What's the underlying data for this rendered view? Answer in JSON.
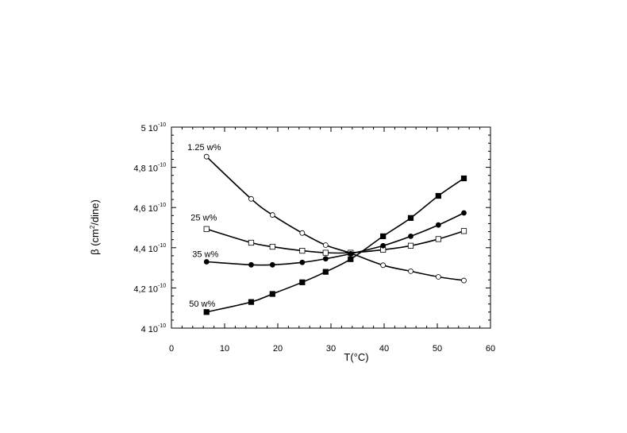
{
  "chart_data": {
    "type": "scatter",
    "xlabel": "T(°C)",
    "ylabel": {
      "prefix": "β (cm",
      "sup": "2",
      "suffix": "/dine)"
    },
    "xlim": [
      0,
      60
    ],
    "ylim": [
      4e-10,
      5e-10
    ],
    "x_ticks": [
      0,
      10,
      20,
      30,
      40,
      50,
      60
    ],
    "y_ticks": [
      {
        "value": 4e-10,
        "mantissa": "4 10",
        "exp": "-10"
      },
      {
        "value": 4.2e-10,
        "mantissa": "4,2 10",
        "exp": "-10"
      },
      {
        "value": 4.4e-10,
        "mantissa": "4,4 10",
        "exp": "-10"
      },
      {
        "value": 4.6e-10,
        "mantissa": "4,6 10",
        "exp": "-10"
      },
      {
        "value": 4.8e-10,
        "mantissa": "4,8 10",
        "exp": "-10"
      },
      {
        "value": 5e-10,
        "mantissa": "5 10",
        "exp": "-10"
      }
    ],
    "grid": false,
    "series": [
      {
        "name": "1.25 w%",
        "marker": "open-circle",
        "x": [
          6.6,
          15,
          19,
          24.6,
          29,
          33.7,
          39.8,
          45,
          50.2,
          55
        ],
        "y": [
          4.853e-10,
          4.643e-10,
          4.563e-10,
          4.473e-10,
          4.413e-10,
          4.373e-10,
          4.313e-10,
          4.283e-10,
          4.255e-10,
          4.237e-10
        ]
      },
      {
        "name": "25 w%",
        "marker": "open-square",
        "x": [
          6.6,
          15,
          19,
          24.6,
          29,
          33.7,
          39.8,
          45,
          50.2,
          55
        ],
        "y": [
          4.493e-10,
          4.425e-10,
          4.405e-10,
          4.385e-10,
          4.375e-10,
          4.375e-10,
          4.39e-10,
          4.41e-10,
          4.443e-10,
          4.483e-10
        ]
      },
      {
        "name": "35 w%",
        "marker": "filled-circle",
        "x": [
          6.6,
          15,
          19,
          24.6,
          29,
          33.7,
          39.8,
          45,
          50.2,
          55
        ],
        "y": [
          4.33e-10,
          4.315e-10,
          4.315e-10,
          4.327e-10,
          4.345e-10,
          4.37e-10,
          4.41e-10,
          4.457e-10,
          4.513e-10,
          4.573e-10
        ]
      },
      {
        "name": "50 w%",
        "marker": "filled-square",
        "x": [
          6.6,
          15,
          19,
          24.6,
          29,
          33.7,
          39.8,
          45,
          50.2,
          55
        ],
        "y": [
          4.08e-10,
          4.13e-10,
          4.17e-10,
          4.228e-10,
          4.28e-10,
          4.343e-10,
          4.457e-10,
          4.548e-10,
          4.658e-10,
          4.745e-10
        ]
      }
    ]
  }
}
